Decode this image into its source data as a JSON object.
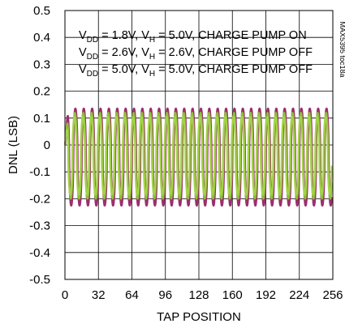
{
  "chart_data": {
    "type": "line",
    "title": "",
    "xlabel": "TAP POSITION",
    "ylabel": "DNL (LSB)",
    "figure_id": "MAX5395 toc18a",
    "xlim": [
      0,
      256
    ],
    "ylim": [
      -0.5,
      0.5
    ],
    "x_ticks": [
      "0",
      "32",
      "64",
      "96",
      "128",
      "160",
      "192",
      "224",
      "256"
    ],
    "y_ticks": [
      "0.5",
      "0.4",
      "0.3",
      "0.2",
      "0.1",
      "0",
      "-0.1",
      "-0.2",
      "-0.3",
      "-0.4",
      "-0.5"
    ],
    "grid": true,
    "legend_position": "top",
    "legend": [
      {
        "prefix": "V",
        "sub1": "DD",
        "mid": " = 1.8V, V",
        "sub2": "H",
        "suffix": " = 5.0V, CHARGE PUMP ON"
      },
      {
        "prefix": "V",
        "sub1": "DD",
        "mid": " = 2.6V, V",
        "sub2": "H",
        "suffix": " = 2.6V, CHARGE PUMP OFF"
      },
      {
        "prefix": "V",
        "sub1": "DD",
        "mid": " = 5.0V, V",
        "sub2": "H",
        "suffix": " = 5.0V, CHARGE PUMP OFF"
      }
    ],
    "series": [
      {
        "color": "#9b2f6c",
        "x_range": [
          0,
          255
        ],
        "period": 8,
        "peak": 0.135,
        "trough": -0.225
      },
      {
        "color": "#8dbf36",
        "x_range": [
          0,
          255
        ],
        "period": 8,
        "peak": 0.12,
        "trough": -0.2
      },
      {
        "color": "#a4d24a",
        "x_range": [
          0,
          255
        ],
        "period": 8,
        "peak": 0.105,
        "trough": -0.185
      }
    ]
  }
}
